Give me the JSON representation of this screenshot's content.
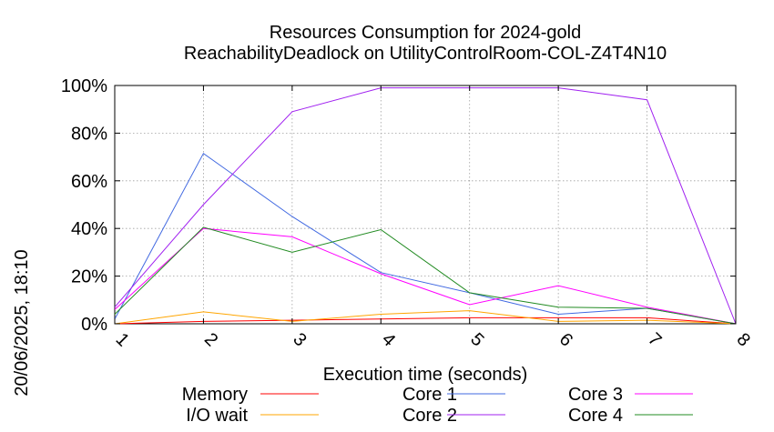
{
  "chart_data": {
    "type": "line",
    "title": "Resources Consumption for 2024-gold",
    "subtitle": "ReachabilityDeadlock on UtilityControlRoom-COL-Z4T4N10",
    "xlabel": "Execution time (seconds)",
    "ylabel": "",
    "side_label": "20/06/2025, 18:10",
    "x": [
      1,
      2,
      3,
      4,
      5,
      6,
      7,
      8
    ],
    "x_tick_labels": [
      "1",
      "2",
      "3",
      "4",
      "5",
      "6",
      "7",
      "8"
    ],
    "xlim": [
      1,
      8
    ],
    "ylim": [
      0,
      100
    ],
    "y_tick_values": [
      0,
      20,
      40,
      60,
      80,
      100
    ],
    "y_tick_labels": [
      "0%",
      "20%",
      "40%",
      "60%",
      "80%",
      "100%"
    ],
    "grid": true,
    "legend_position": "bottom",
    "series": [
      {
        "name": "Memory",
        "color": "#ff0000",
        "values": [
          0,
          1,
          1.5,
          2,
          2.5,
          2.5,
          2.5,
          0
        ]
      },
      {
        "name": "I/O wait",
        "color": "#ffa500",
        "values": [
          0,
          5,
          1,
          4,
          5.5,
          1,
          1.5,
          0
        ]
      },
      {
        "name": "Core 1",
        "color": "#4169e1",
        "values": [
          2,
          71.5,
          45,
          21.5,
          13,
          4,
          6.5,
          0
        ]
      },
      {
        "name": "Core 2",
        "color": "#a020f0",
        "values": [
          7,
          50,
          89,
          99,
          99,
          99,
          94,
          0
        ]
      },
      {
        "name": "Core 3",
        "color": "#ff00ff",
        "values": [
          6,
          40,
          36.5,
          21,
          8,
          16,
          7,
          0
        ]
      },
      {
        "name": "Core 4",
        "color": "#228b22",
        "values": [
          4,
          40.5,
          30,
          39.5,
          13,
          7,
          6.5,
          0
        ]
      }
    ]
  }
}
